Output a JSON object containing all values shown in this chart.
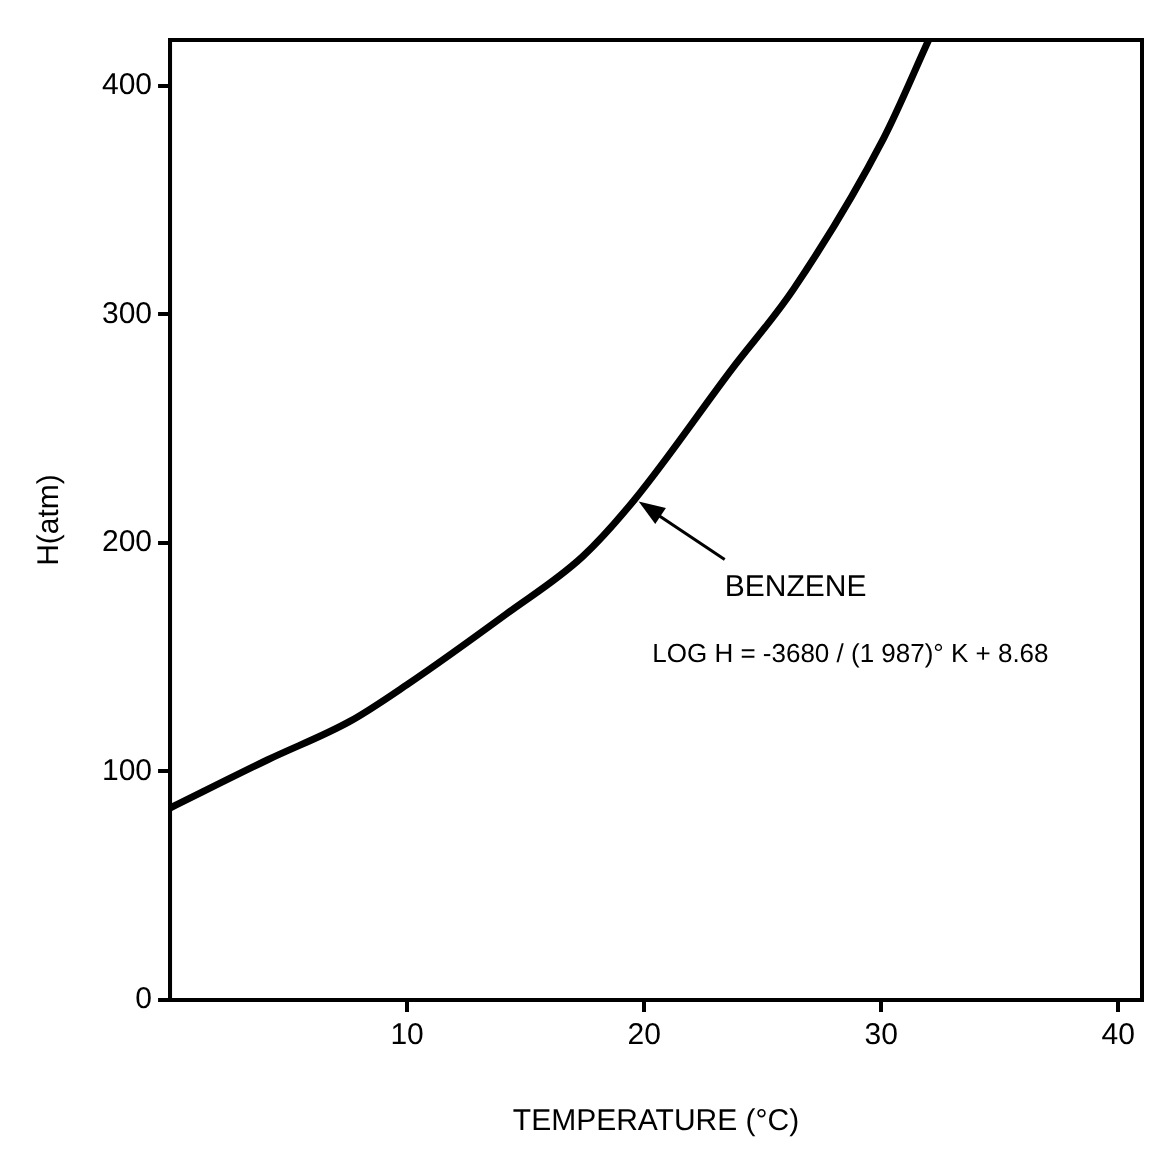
{
  "chart_data": {
    "type": "line",
    "xlabel": "TEMPERATURE (°C)",
    "ylabel": "H(atm)",
    "x": [
      0,
      4.1,
      7.6,
      10,
      14.2,
      17.4,
      19.6,
      23.7,
      26.3,
      30.1,
      32
    ],
    "values": [
      84,
      105,
      122,
      138,
      169,
      194,
      219,
      276,
      311,
      377,
      420
    ],
    "color": "#000000",
    "marker": "none",
    "line_style": "solid",
    "grid": false,
    "legend": false,
    "xlim": [
      0,
      41
    ],
    "xticks": [
      10,
      20,
      30,
      40
    ],
    "ylim": [
      0,
      420
    ],
    "yticks": [
      0,
      100,
      200,
      300,
      400
    ],
    "annotations": [
      {
        "text": "BENZENE",
        "x": 19.6,
        "y": 219
      },
      "LOG H = -3680 / (1 987)° K + 8.68"
    ]
  }
}
